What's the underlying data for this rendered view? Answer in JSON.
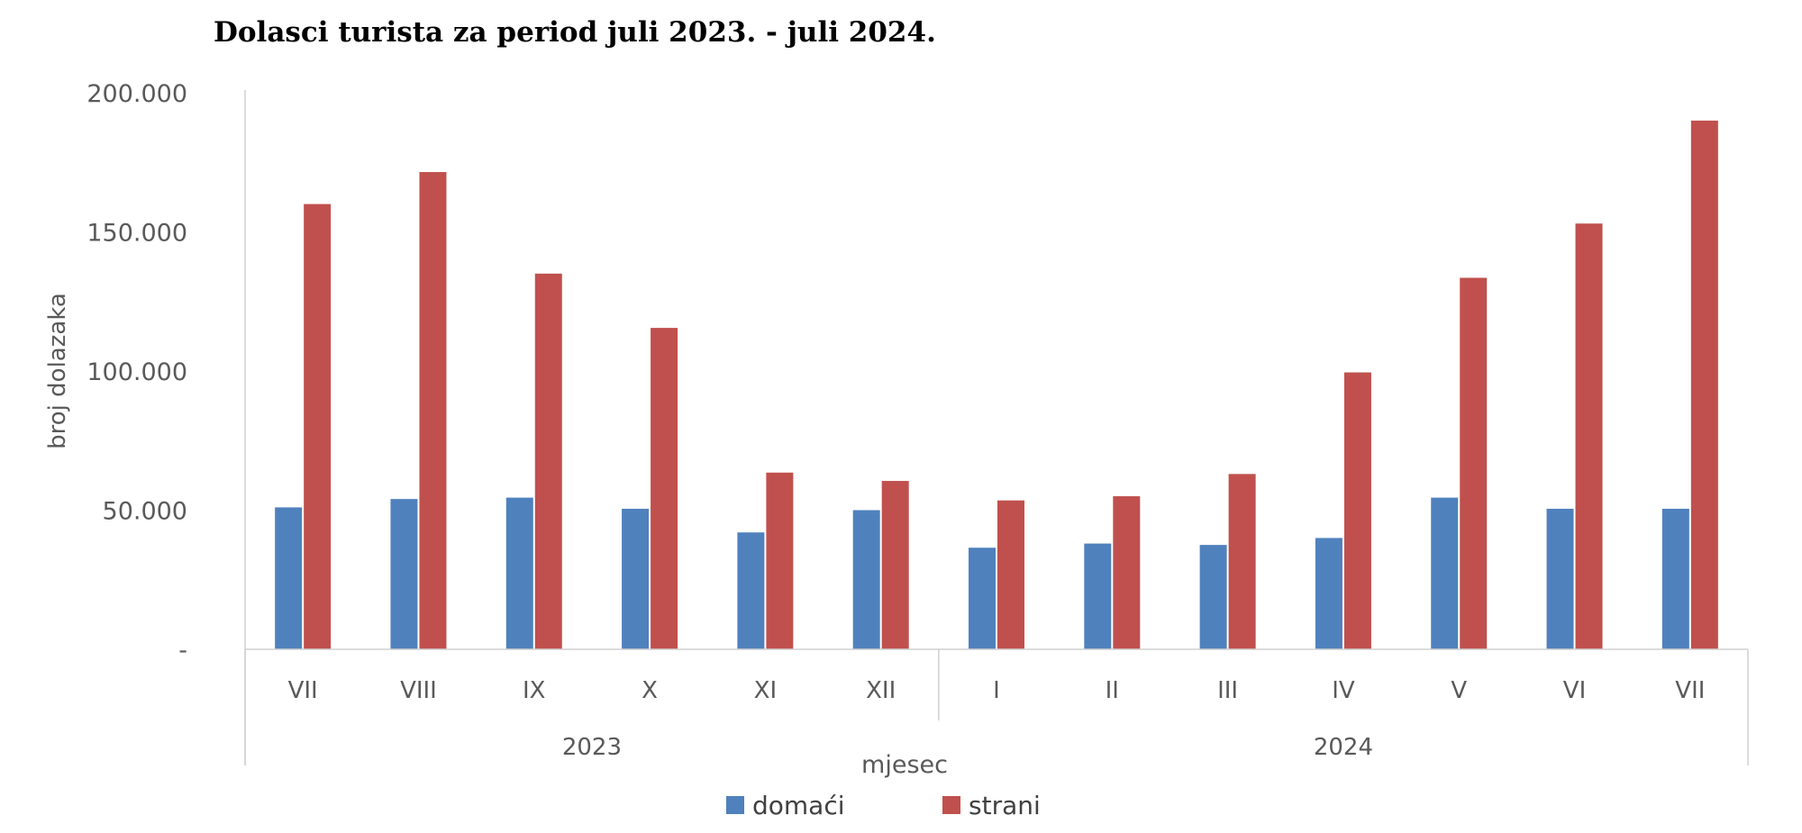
{
  "chart_data": {
    "type": "bar",
    "title": "Dolasci turista za period juli 2023. - juli 2024.",
    "xlabel": "mjesec",
    "ylabel": "broj dolazaka",
    "ylim": [
      0,
      200000
    ],
    "y_ticks": [
      {
        "value": 0,
        "label": "-"
      },
      {
        "value": 50000,
        "label": "50.000"
      },
      {
        "value": 100000,
        "label": "100.000"
      },
      {
        "value": 150000,
        "label": "150.000"
      },
      {
        "value": 200000,
        "label": "200.000"
      }
    ],
    "categories": [
      "VII",
      "VIII",
      "IX",
      "X",
      "XI",
      "XII",
      "I",
      "II",
      "III",
      "IV",
      "V",
      "VI",
      "VII"
    ],
    "groups": [
      {
        "label": "2023",
        "count": 6
      },
      {
        "label": "2024",
        "count": 7
      }
    ],
    "series": [
      {
        "name": "domaći",
        "color": "#4f81bd",
        "values": [
          51000,
          54000,
          54500,
          50500,
          42000,
          50000,
          36500,
          38000,
          37500,
          40000,
          54500,
          50500,
          50500
        ]
      },
      {
        "name": "strani",
        "color": "#c0504d",
        "values": [
          160000,
          171500,
          135000,
          115500,
          63500,
          60500,
          53500,
          55000,
          63000,
          99500,
          133500,
          153000,
          190000
        ]
      }
    ],
    "grid": false,
    "legend_position": "bottom"
  }
}
